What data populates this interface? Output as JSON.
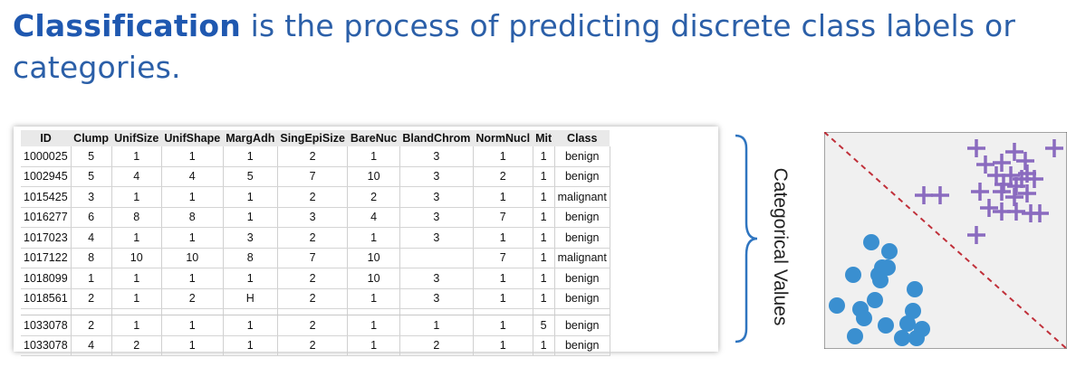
{
  "headline": {
    "bold": "Classification",
    "rest": " is the process of predicting discrete class labels or categories."
  },
  "table": {
    "columns": [
      "ID",
      "Clump",
      "UnifSize",
      "UnifShape",
      "MargAdh",
      "SingEpiSize",
      "BareNuc",
      "BlandChrom",
      "NormNucl",
      "Mit",
      "Class"
    ],
    "rows": [
      [
        "1000025",
        "5",
        "1",
        "1",
        "1",
        "2",
        "1",
        "3",
        "1",
        "1",
        "benign"
      ],
      [
        "1002945",
        "5",
        "4",
        "4",
        "5",
        "7",
        "10",
        "3",
        "2",
        "1",
        "benign"
      ],
      [
        "1015425",
        "3",
        "1",
        "1",
        "1",
        "2",
        "2",
        "3",
        "1",
        "1",
        "malignant"
      ],
      [
        "1016277",
        "6",
        "8",
        "8",
        "1",
        "3",
        "4",
        "3",
        "7",
        "1",
        "benign"
      ],
      [
        "1017023",
        "4",
        "1",
        "1",
        "3",
        "2",
        "1",
        "3",
        "1",
        "1",
        "benign"
      ],
      [
        "1017122",
        "8",
        "10",
        "10",
        "8",
        "7",
        "10",
        "",
        "7",
        "1",
        "malignant"
      ],
      [
        "1018099",
        "1",
        "1",
        "1",
        "1",
        "2",
        "10",
        "3",
        "1",
        "1",
        "benign"
      ],
      [
        "1018561",
        "2",
        "1",
        "2",
        "H",
        "2",
        "1",
        "3",
        "1",
        "1",
        "benign"
      ],
      [
        "1033078",
        "2",
        "1",
        "1",
        "1",
        "2",
        "1",
        "1",
        "1",
        "5",
        "benign"
      ],
      [
        "1033078",
        "4",
        "2",
        "1",
        "1",
        "2",
        "1",
        "2",
        "1",
        "1",
        "benign"
      ]
    ]
  },
  "brace_label": "Categorical Values",
  "colors": {
    "headline": "#2b5fa8",
    "plus_marker": "#8a6bbf",
    "dot_marker": "#3a8fd0",
    "divider": "#c0303a",
    "plot_bg": "#f0f0f0"
  },
  "icons": {
    "class_a": "plus-marker",
    "class_b": "circle-marker"
  }
}
